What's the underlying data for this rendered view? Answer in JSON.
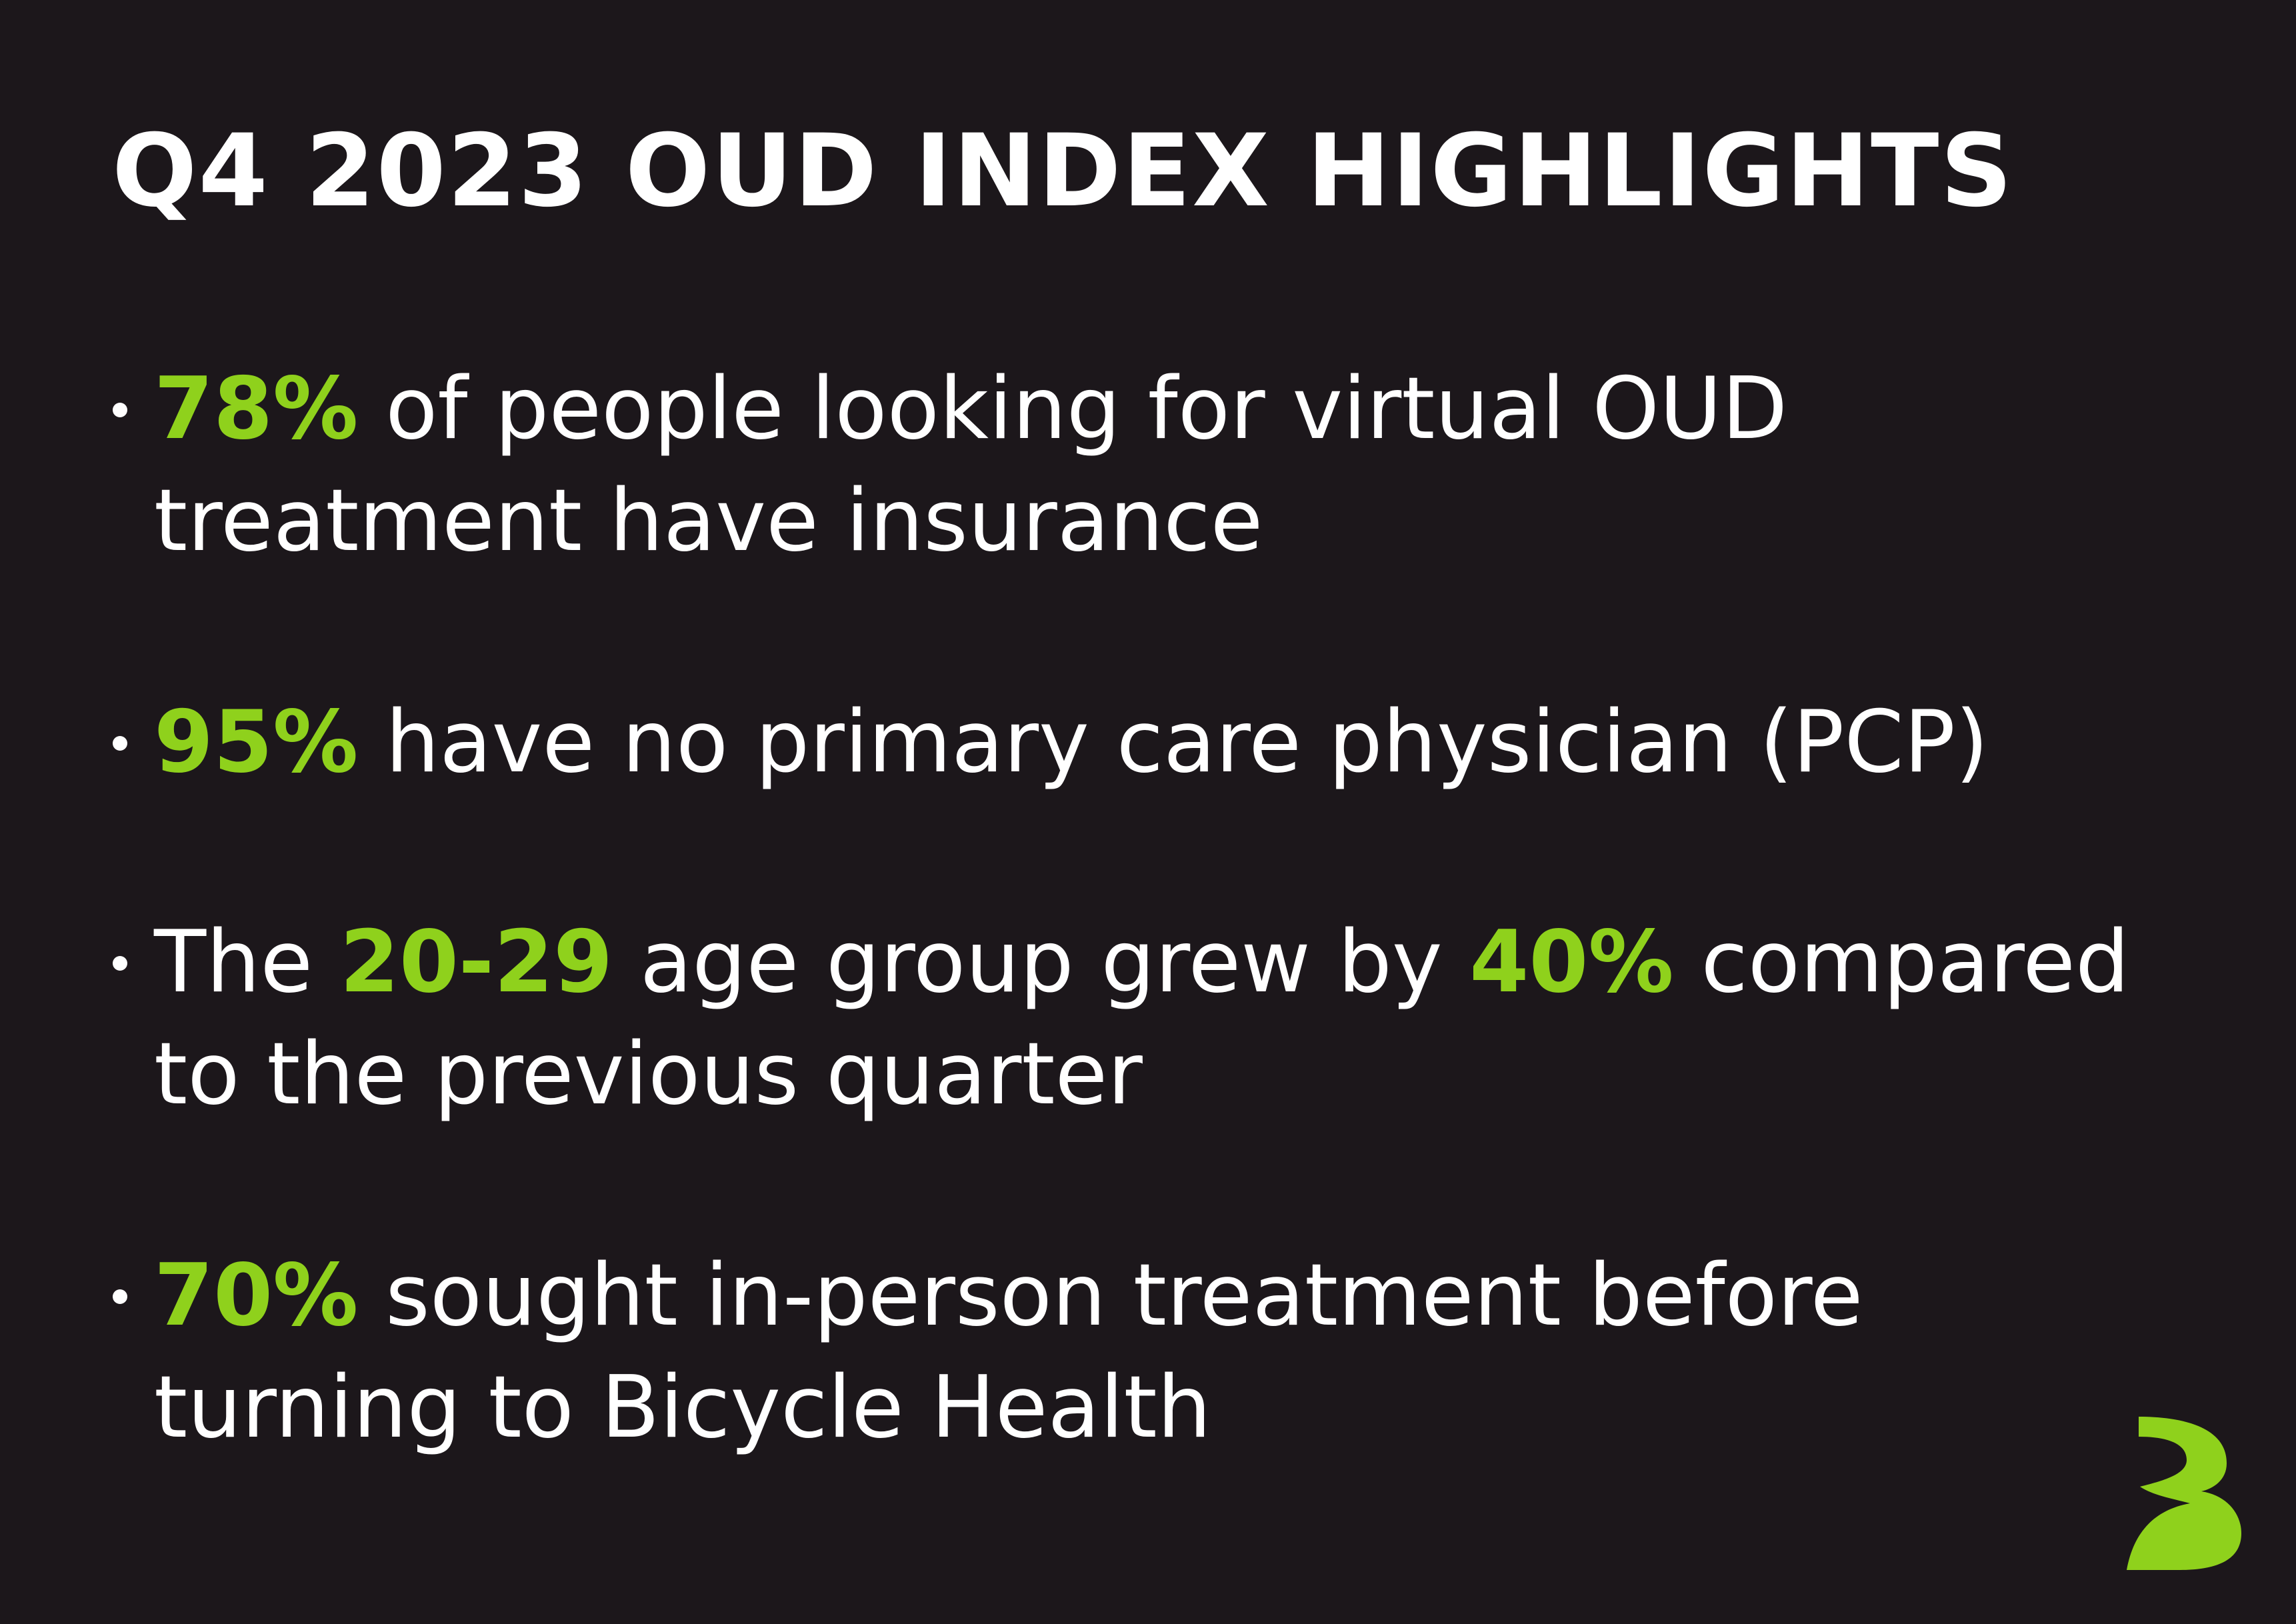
{
  "header": {
    "title": "Q4 2023 OUD INDEX HIGHLIGHTS"
  },
  "bullets": [
    {
      "segments": [
        {
          "text": "78%",
          "color": "#8fd11c"
        },
        {
          "text": " of people looking for virtual OUD treatment have insurance",
          "color": "#ffffff"
        }
      ]
    },
    {
      "segments": [
        {
          "text": "95%",
          "color": "#8fd11c"
        },
        {
          "text": " have no primary care physician (PCP)",
          "color": "#ffffff"
        }
      ]
    },
    {
      "segments": [
        {
          "text": "The ",
          "color": "#ffffff"
        },
        {
          "text": "20-29",
          "color": "#8fd11c"
        },
        {
          "text": " age group grew by ",
          "color": "#ffffff"
        },
        {
          "text": "40%",
          "color": "#8fd11c"
        },
        {
          "text": " compared to the previous quarter",
          "color": "#ffffff"
        }
      ]
    },
    {
      "segments": [
        {
          "text": "70%",
          "color": "#8fd11c"
        },
        {
          "text": " sought in-person treatment before turning to Bicycle Health",
          "color": "#ffffff"
        }
      ]
    }
  ]
}
